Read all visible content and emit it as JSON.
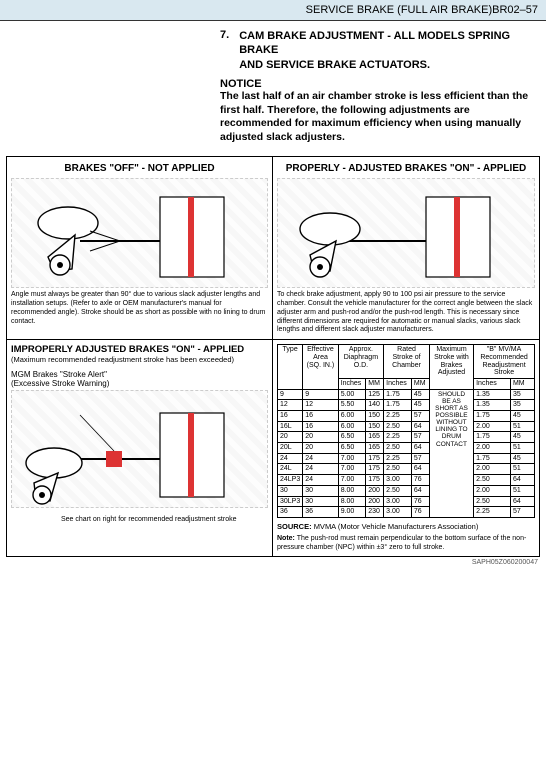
{
  "header": {
    "section_title": "SERVICE BRAKE (FULL AIR BRAKE)",
    "page_code": "BR02–57"
  },
  "section": {
    "number": "7.",
    "title_line1": "CAM BRAKE ADJUSTMENT - ALL MODELS SPRING BRAKE",
    "title_line2": "AND SERVICE BRAKE ACTUATORS.",
    "notice_label": "NOTICE",
    "notice_text": "The last half of an air chamber stroke is less efficient than the first half. Therefore, the following adjustments are recommended for maximum efficiency when using manually adjusted slack adjusters."
  },
  "panels": {
    "off": {
      "title": "BRAKES \"OFF\" - NOT APPLIED",
      "caption": "Angle must always be greater than 90° due to various slack adjuster lengths and installation setups. (Refer to axle or OEM manufacturer's manual for recommended angle). Stroke should be as short as possible with no lining to drum contact."
    },
    "proper": {
      "title": "PROPERLY - ADJUSTED BRAKES \"ON\" - APPLIED",
      "caption": "To check brake adjustment, apply 90 to 100 psi air pressure to the service chamber. Consult the vehicle manufacturer for the correct angle between the slack adjuster arm and push-rod and/or the push-rod length. This is necessary since different dimensions are required for automatic or manual slacks, various slack lengths and different slack adjuster manufacturers."
    },
    "improper": {
      "title": "IMPROPERLY ADJUSTED BRAKES \"ON\" - APPLIED",
      "subtitle": "(Maximum recommended readjustment stroke has been exceeded)",
      "alert_line1": "MGM Brakes \"Stroke Alert\"",
      "alert_line2": "(Excessive Stroke Warning)",
      "chart_note": "See chart on right for recommended readjustment stroke"
    }
  },
  "table": {
    "headers": {
      "type": "Type",
      "area": "Effective Area (SQ. IN.)",
      "diaphragm": "Approx. Diaphragm O.D.",
      "rated": "Rated Stroke of Chamber",
      "max": "Maximum Stroke with Brakes Adjusted",
      "readj": "\"B\" MV/MA Recommended Readjustment Stroke",
      "inches": "Inches",
      "mm": "MM"
    },
    "max_text": [
      "SHOULD",
      "BE AS",
      "SHORT AS",
      "POSSIBLE",
      "WITHOUT",
      "LINING TO",
      "DRUM",
      "CONTACT"
    ],
    "rows": [
      {
        "type": "9",
        "area": "9",
        "d_in": "5.00",
        "d_mm": "125",
        "r_in": "1.75",
        "r_mm": "45",
        "b_in": "1.35",
        "b_mm": "35"
      },
      {
        "type": "12",
        "area": "12",
        "d_in": "5.50",
        "d_mm": "140",
        "r_in": "1.75",
        "r_mm": "45",
        "b_in": "1.35",
        "b_mm": "35"
      },
      {
        "type": "16",
        "area": "16",
        "d_in": "6.00",
        "d_mm": "150",
        "r_in": "2.25",
        "r_mm": "57",
        "b_in": "1.75",
        "b_mm": "45"
      },
      {
        "type": "16L",
        "area": "16",
        "d_in": "6.00",
        "d_mm": "150",
        "r_in": "2.50",
        "r_mm": "64",
        "b_in": "2.00",
        "b_mm": "51"
      },
      {
        "type": "20",
        "area": "20",
        "d_in": "6.50",
        "d_mm": "165",
        "r_in": "2.25",
        "r_mm": "57",
        "b_in": "1.75",
        "b_mm": "45"
      },
      {
        "type": "20L",
        "area": "20",
        "d_in": "6.50",
        "d_mm": "165",
        "r_in": "2.50",
        "r_mm": "64",
        "b_in": "2.00",
        "b_mm": "51"
      },
      {
        "type": "24",
        "area": "24",
        "d_in": "7.00",
        "d_mm": "175",
        "r_in": "2.25",
        "r_mm": "57",
        "b_in": "1.75",
        "b_mm": "45"
      },
      {
        "type": "24L",
        "area": "24",
        "d_in": "7.00",
        "d_mm": "175",
        "r_in": "2.50",
        "r_mm": "64",
        "b_in": "2.00",
        "b_mm": "51"
      },
      {
        "type": "24LP3",
        "area": "24",
        "d_in": "7.00",
        "d_mm": "175",
        "r_in": "3.00",
        "r_mm": "76",
        "b_in": "2.50",
        "b_mm": "64"
      },
      {
        "type": "30",
        "area": "30",
        "d_in": "8.00",
        "d_mm": "200",
        "r_in": "2.50",
        "r_mm": "64",
        "b_in": "2.00",
        "b_mm": "51"
      },
      {
        "type": "30LP3",
        "area": "30",
        "d_in": "8.00",
        "d_mm": "200",
        "r_in": "3.00",
        "r_mm": "76",
        "b_in": "2.50",
        "b_mm": "64"
      },
      {
        "type": "36",
        "area": "36",
        "d_in": "9.00",
        "d_mm": "230",
        "r_in": "3.00",
        "r_mm": "76",
        "b_in": "2.25",
        "b_mm": "57"
      }
    ],
    "source_label": "SOURCE:",
    "source_text": "MVMA (Motor Vehicle Manufacturers Association)",
    "note_label": "Note:",
    "note_text": "The push-rod must remain perpendicular to the bottom surface of the non-pressure chamber (NPC) within ±3° zero to full stroke."
  },
  "footer_code": "SAPH05Z060200047"
}
